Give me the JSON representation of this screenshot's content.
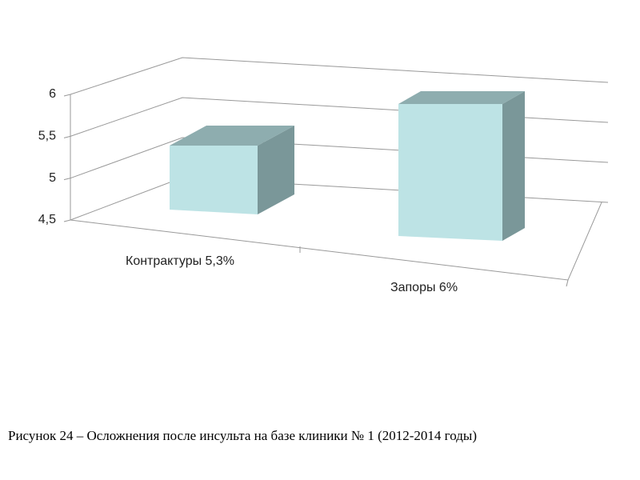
{
  "chart_data": {
    "type": "bar3d",
    "categories": [
      "Контрактуры 5,3%",
      "Запоры 6%"
    ],
    "values": [
      5.3,
      6
    ],
    "color": "#bde3e5",
    "ylim": [
      4.5,
      6
    ],
    "yticks": [
      {
        "value": 4.5,
        "label": "4,5"
      },
      5,
      {
        "value": 5.5,
        "label": "5,5"
      },
      6
    ],
    "grid": true,
    "caption": "Рисунок 24 – Осложнения после инсульта на базе клиники № 1 (2012-2014 годы)"
  }
}
